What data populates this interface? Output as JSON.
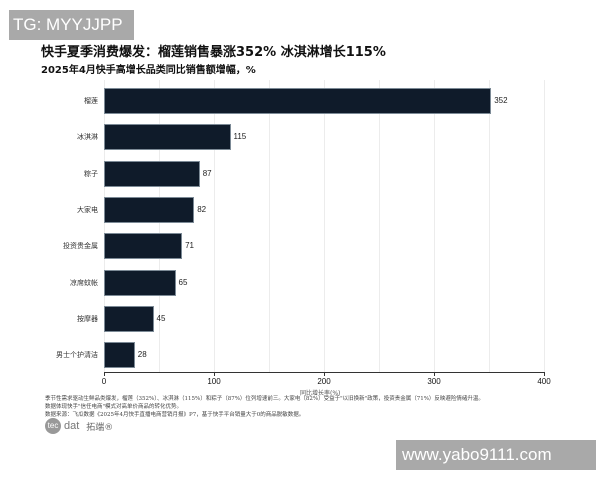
{
  "watermarks": {
    "top_left": "TG: MYYJJPP",
    "bottom_right": "www.yabo9111.com"
  },
  "header": {
    "title": "快手夏季消费爆发：榴莲销售暴涨352% 冰淇淋增长115%",
    "subtitle": "2025年4月快手高增长品类同比销售额增幅，%"
  },
  "chart_data": {
    "type": "bar",
    "orientation": "horizontal",
    "title": "快手夏季消费爆发：榴莲销售暴涨352% 冰淇淋增长115%",
    "subtitle": "2025年4月快手高增长品类同比销售额增幅，%",
    "categories": [
      "榴莲",
      "冰淇淋",
      "粽子",
      "大家电",
      "投资贵金属",
      "凉席蚊帐",
      "按摩器",
      "男士个护清洁"
    ],
    "values": [
      352,
      115,
      87,
      82,
      71,
      65,
      45,
      28
    ],
    "value_labels": [
      "352",
      "115",
      "87",
      "82",
      "71",
      "65",
      "45",
      "28"
    ],
    "xlabel": "同比增长率(%)",
    "ylabel": "",
    "xlim": [
      0,
      400
    ],
    "xticks": [
      "0",
      "100",
      "200",
      "300",
      "400"
    ],
    "grid": true,
    "bar_color": "#0f1b2a"
  },
  "notes": [
    "季节性需求驱动生鲜品类爆发，榴莲（352%）、冰淇淋（115%）和粽子（87%）位列增速前三。大家电（82%）受益于\"以旧换新\"政策，投资贵金属（71%）反映避险情绪升温。",
    "数据体现快手\"信任电商\"模式对高单价商品的转化优势。",
    "数据来源：飞瓜数据《2025年4月快手直播电商营销月报》P7，基于快手平台销量大于0的商品脱敏数据。"
  ],
  "logo": {
    "circle": "tec",
    "text": "dat",
    "cn": "拓端®"
  }
}
